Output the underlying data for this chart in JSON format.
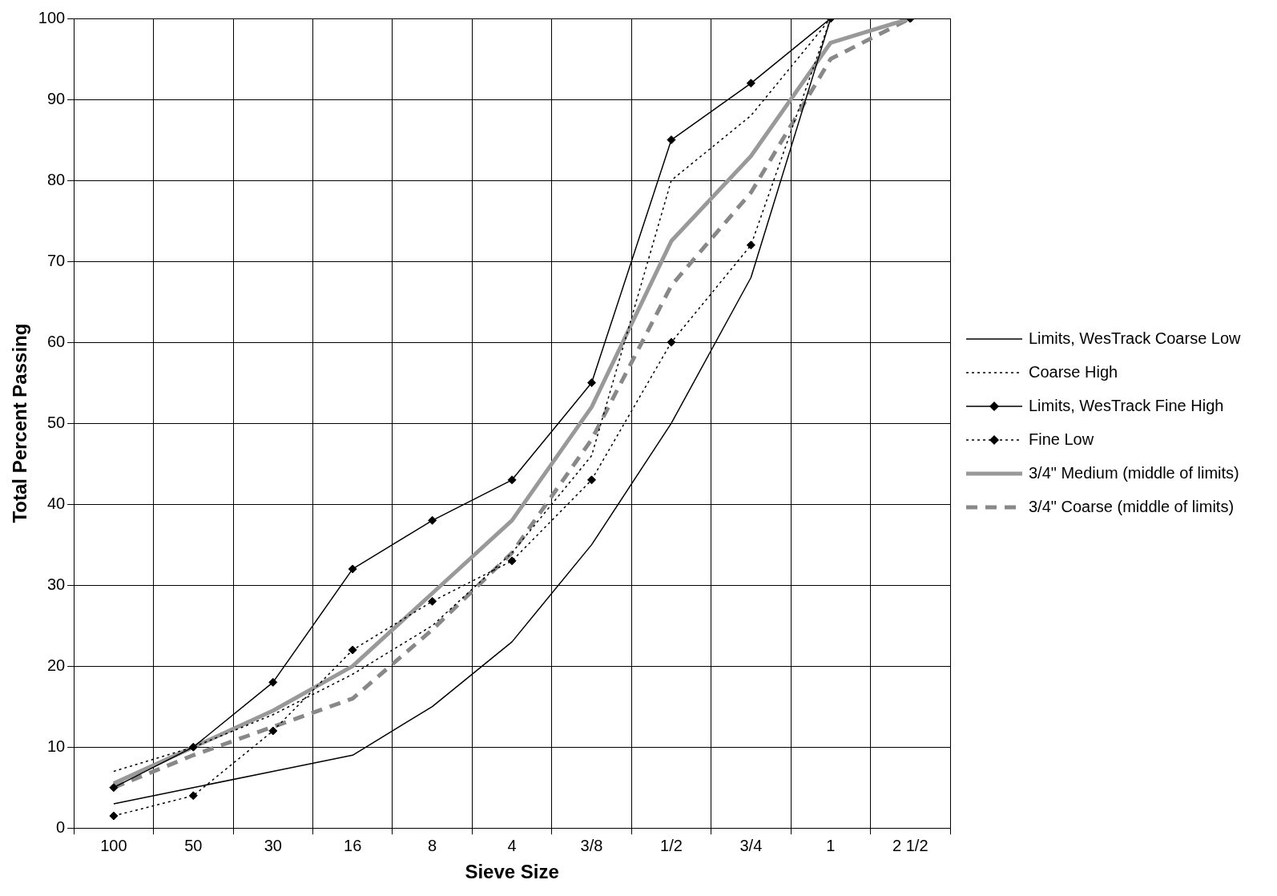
{
  "chart_data": {
    "type": "line",
    "xlabel": "Sieve Size",
    "ylabel": "Total Percent Passing",
    "categories": [
      "100",
      "50",
      "30",
      "16",
      "8",
      "4",
      "3/8",
      "1/2",
      "3/4",
      "1",
      "2 1/2"
    ],
    "ylim": [
      0,
      100
    ],
    "yticks": [
      0,
      10,
      20,
      30,
      40,
      50,
      60,
      70,
      80,
      90,
      100
    ],
    "grid": true,
    "legend": "right",
    "series": [
      {
        "name": "Limits, WesTrack Coarse Low",
        "color": "#000000",
        "line_style": "solid",
        "marker": "none",
        "values": [
          3,
          5,
          7,
          9,
          15,
          23,
          35,
          50,
          68,
          100,
          100
        ]
      },
      {
        "name": "Coarse High",
        "color": "#000000",
        "line_style": "dotted",
        "marker": "none",
        "values": [
          7,
          10,
          14,
          19,
          25,
          34,
          46,
          80,
          88,
          100,
          100
        ]
      },
      {
        "name": "Limits, WesTrack Fine High",
        "color": "#000000",
        "line_style": "solid",
        "marker": "diamond",
        "values": [
          5,
          10,
          18,
          32,
          38,
          43,
          55,
          85,
          92,
          100,
          100
        ]
      },
      {
        "name": "Fine Low",
        "color": "#000000",
        "line_style": "dotted",
        "marker": "diamond",
        "values": [
          1.5,
          4,
          12,
          22,
          28,
          33,
          43,
          60,
          72,
          100,
          100
        ]
      },
      {
        "name": "3/4\" Medium (middle of limits)",
        "color": "#999999",
        "line_style": "solid",
        "marker": "none",
        "values": [
          5.5,
          10,
          14.5,
          20,
          29,
          38,
          52,
          72.5,
          83,
          97,
          100
        ]
      },
      {
        "name": "3/4\" Coarse (middle of limits)",
        "color": "#888888",
        "line_style": "dashed",
        "marker": "none",
        "values": [
          5,
          9,
          12.5,
          16,
          24.5,
          34,
          48,
          67,
          78.5,
          95,
          100
        ]
      }
    ]
  }
}
